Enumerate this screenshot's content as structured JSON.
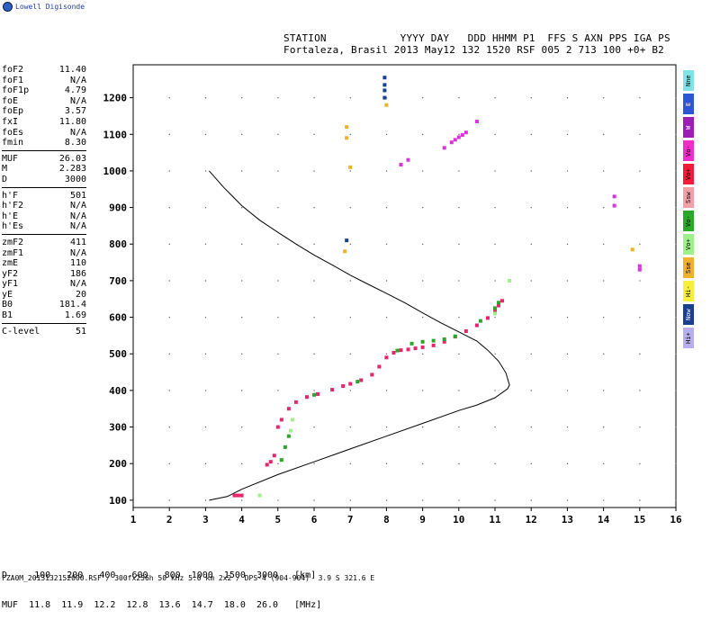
{
  "logo": {
    "text": "Lowell Digisonde"
  },
  "header": {
    "line1": "STATION            YYYY DAY   DDD HHMM P1  FFS S AXN PPS IGA PS",
    "line2": "Fortaleza, Brasil 2013 May12 132 1520 RSF 005 2 713 100 +0+ B2"
  },
  "params": [
    {
      "name": "foF2",
      "value": "11.40"
    },
    {
      "name": "foF1",
      "value": "N/A"
    },
    {
      "name": "foF1p",
      "value": "4.79"
    },
    {
      "name": "foE",
      "value": "N/A"
    },
    {
      "name": "foEp",
      "value": "3.57"
    },
    {
      "name": "fxI",
      "value": "11.80"
    },
    {
      "name": "foEs",
      "value": "N/A"
    },
    {
      "name": "fmin",
      "value": "8.30"
    },
    {
      "name": "MUF",
      "value": "26.03"
    },
    {
      "name": "M",
      "value": "2.283"
    },
    {
      "name": "D",
      "value": "3000"
    },
    {
      "name": "h'F",
      "value": "501"
    },
    {
      "name": "h'F2",
      "value": "N/A"
    },
    {
      "name": "h'E",
      "value": "N/A"
    },
    {
      "name": "h'Es",
      "value": "N/A"
    },
    {
      "name": "zmF2",
      "value": "411"
    },
    {
      "name": "zmF1",
      "value": "N/A"
    },
    {
      "name": "zmE",
      "value": "110"
    },
    {
      "name": "yF2",
      "value": "186"
    },
    {
      "name": "yF1",
      "value": "N/A"
    },
    {
      "name": "yE",
      "value": "20"
    },
    {
      "name": "B0",
      "value": "181.4"
    },
    {
      "name": "B1",
      "value": "1.69"
    },
    {
      "name": "C-level",
      "value": "51"
    }
  ],
  "param_groups": [
    [
      0,
      8
    ],
    [
      8,
      11
    ],
    [
      11,
      15
    ],
    [
      15,
      23
    ],
    [
      23,
      24
    ]
  ],
  "sidebar": [
    {
      "label": "Nne",
      "color": "#7fe3e6"
    },
    {
      "label": "E",
      "color": "#2b57d6"
    },
    {
      "label": "W",
      "color": "#9b1fb3"
    },
    {
      "label": "Vo-",
      "color": "#f22cc8"
    },
    {
      "label": "Vo+",
      "color": "#f21c3a"
    },
    {
      "label": "Ssw",
      "color": "#f2a0a8"
    },
    {
      "label": "Vo-",
      "color": "#2aa82a"
    },
    {
      "label": "Vo+",
      "color": "#9ef08a"
    },
    {
      "label": "Sse",
      "color": "#f0b02a"
    },
    {
      "label": "Hi-",
      "color": "#f5f03a"
    },
    {
      "label": "Now",
      "color": "#1a3f8e"
    },
    {
      "label": "Hi+",
      "color": "#b8b0ee"
    }
  ],
  "muf_table": {
    "line1": "D     100   200   400   600   800  1000  1500  3000   [km]",
    "line2": "MUF  11.8  11.9  12.2  12.8  13.6  14.7  18.0  26.0   [MHz]"
  },
  "footer": "FZA0M_2013132152000.RSF / 300fx256h 50 kHz 5.0 km 2x2 / DPS-4 (904-904)  3.9 S 321.6 E",
  "chart_data": {
    "type": "scatter",
    "xlim": [
      1,
      16
    ],
    "ylim": [
      80,
      1290
    ],
    "xticks": [
      1,
      2,
      3,
      4,
      5,
      6,
      7,
      8,
      9,
      10,
      11,
      12,
      13,
      14,
      15,
      16
    ],
    "yticks": [
      100,
      200,
      300,
      400,
      500,
      600,
      700,
      800,
      900,
      1000,
      1100,
      1200
    ],
    "grid": true,
    "profile": {
      "name": "",
      "color": "#000000",
      "points": [
        [
          3.1,
          1000
        ],
        [
          3.5,
          955
        ],
        [
          4.0,
          905
        ],
        [
          4.5,
          865
        ],
        [
          5.0,
          832
        ],
        [
          5.5,
          800
        ],
        [
          6.0,
          770
        ],
        [
          6.5,
          743
        ],
        [
          7.0,
          715
        ],
        [
          7.5,
          690
        ],
        [
          8.0,
          665
        ],
        [
          8.5,
          640
        ],
        [
          9.0,
          612
        ],
        [
          9.5,
          585
        ],
        [
          10.0,
          560
        ],
        [
          10.5,
          535
        ],
        [
          10.8,
          510
        ],
        [
          11.1,
          480
        ],
        [
          11.3,
          448
        ],
        [
          11.4,
          415
        ],
        [
          11.35,
          405
        ],
        [
          11.0,
          380
        ],
        [
          10.5,
          360
        ],
        [
          10.0,
          345
        ],
        [
          9.0,
          310
        ],
        [
          8.0,
          275
        ],
        [
          7.0,
          240
        ],
        [
          6.0,
          205
        ],
        [
          5.0,
          170
        ],
        [
          4.0,
          130
        ],
        [
          3.6,
          110
        ],
        [
          3.1,
          100
        ]
      ]
    },
    "series": [
      {
        "name": "",
        "color": "#e8246c",
        "points": [
          [
            3.8,
            113
          ],
          [
            3.9,
            113
          ],
          [
            4.0,
            113
          ],
          [
            4.7,
            197
          ],
          [
            4.8,
            205
          ],
          [
            4.9,
            222
          ],
          [
            5.0,
            300
          ],
          [
            5.1,
            320
          ],
          [
            5.3,
            350
          ],
          [
            5.5,
            368
          ],
          [
            5.8,
            382
          ],
          [
            6.1,
            390
          ],
          [
            6.5,
            402
          ],
          [
            6.8,
            412
          ],
          [
            7.0,
            418
          ],
          [
            7.3,
            428
          ],
          [
            7.6,
            443
          ],
          [
            7.8,
            465
          ],
          [
            8.0,
            490
          ],
          [
            8.2,
            503
          ],
          [
            8.4,
            510
          ],
          [
            8.6,
            512
          ],
          [
            8.8,
            515
          ],
          [
            9.0,
            518
          ],
          [
            9.3,
            523
          ],
          [
            9.6,
            533
          ],
          [
            9.9,
            547
          ],
          [
            10.2,
            562
          ],
          [
            10.5,
            578
          ],
          [
            10.8,
            598
          ],
          [
            11.0,
            618
          ],
          [
            11.1,
            632
          ],
          [
            11.2,
            645
          ]
        ]
      },
      {
        "name": "",
        "color": "#2aa82a",
        "points": [
          [
            5.1,
            210
          ],
          [
            5.2,
            245
          ],
          [
            5.3,
            275
          ],
          [
            6.0,
            388
          ],
          [
            7.2,
            424
          ],
          [
            8.3,
            509
          ],
          [
            8.7,
            528
          ],
          [
            9.0,
            533
          ],
          [
            9.3,
            536
          ],
          [
            9.6,
            540
          ],
          [
            9.9,
            548
          ],
          [
            10.6,
            590
          ],
          [
            11.0,
            625
          ],
          [
            11.1,
            640
          ]
        ]
      },
      {
        "name": "",
        "color": "#d933d9",
        "points": [
          [
            8.4,
            1017
          ],
          [
            8.6,
            1030
          ],
          [
            9.6,
            1063
          ],
          [
            9.8,
            1078
          ],
          [
            9.9,
            1085
          ],
          [
            10.0,
            1092
          ],
          [
            10.1,
            1098
          ],
          [
            10.2,
            1105
          ],
          [
            10.5,
            1135
          ],
          [
            14.3,
            930
          ],
          [
            14.3,
            905
          ],
          [
            15.0,
            740
          ],
          [
            15.0,
            730
          ]
        ]
      },
      {
        "name": "",
        "color": "#f0b02a",
        "points": [
          [
            6.9,
            1120
          ],
          [
            6.9,
            1090
          ],
          [
            7.0,
            1010
          ],
          [
            6.85,
            780
          ],
          [
            8.0,
            1180
          ],
          [
            14.8,
            785
          ]
        ]
      },
      {
        "name": "",
        "color": "#1a3f8e",
        "points": [
          [
            7.95,
            1255
          ],
          [
            7.95,
            1235
          ],
          [
            7.95,
            1220
          ],
          [
            7.95,
            1200
          ],
          [
            6.9,
            810
          ]
        ]
      },
      {
        "name": "",
        "color": "#9ef08a",
        "points": [
          [
            4.5,
            113
          ],
          [
            5.4,
            320
          ],
          [
            5.35,
            290
          ],
          [
            11.0,
            610
          ],
          [
            11.4,
            700
          ]
        ]
      }
    ]
  }
}
